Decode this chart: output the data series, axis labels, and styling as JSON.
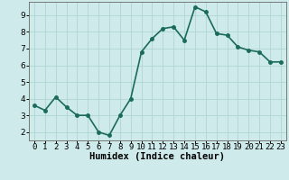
{
  "x": [
    0,
    1,
    2,
    3,
    4,
    5,
    6,
    7,
    8,
    9,
    10,
    11,
    12,
    13,
    14,
    15,
    16,
    17,
    18,
    19,
    20,
    21,
    22,
    23
  ],
  "y": [
    3.6,
    3.3,
    4.1,
    3.5,
    3.0,
    3.0,
    2.0,
    1.8,
    3.0,
    4.0,
    6.8,
    7.6,
    8.2,
    8.3,
    7.5,
    9.5,
    9.2,
    7.9,
    7.8,
    7.1,
    6.9,
    6.8,
    6.2,
    6.2
  ],
  "line_color": "#1a6b5a",
  "marker": "o",
  "marker_size": 2.5,
  "bg_color": "#ceeaea",
  "grid_color": "#b0d4d4",
  "xlabel": "Humidex (Indice chaleur)",
  "xlim": [
    -0.5,
    23.5
  ],
  "ylim": [
    1.5,
    9.8
  ],
  "yticks": [
    2,
    3,
    4,
    5,
    6,
    7,
    8,
    9
  ],
  "xtick_labels": [
    "0",
    "1",
    "2",
    "3",
    "4",
    "5",
    "6",
    "7",
    "8",
    "9",
    "10",
    "11",
    "12",
    "13",
    "14",
    "15",
    "16",
    "17",
    "18",
    "19",
    "20",
    "21",
    "22",
    "23"
  ],
  "xlabel_fontsize": 7.5,
  "tick_fontsize": 6.5,
  "line_width": 1.2
}
